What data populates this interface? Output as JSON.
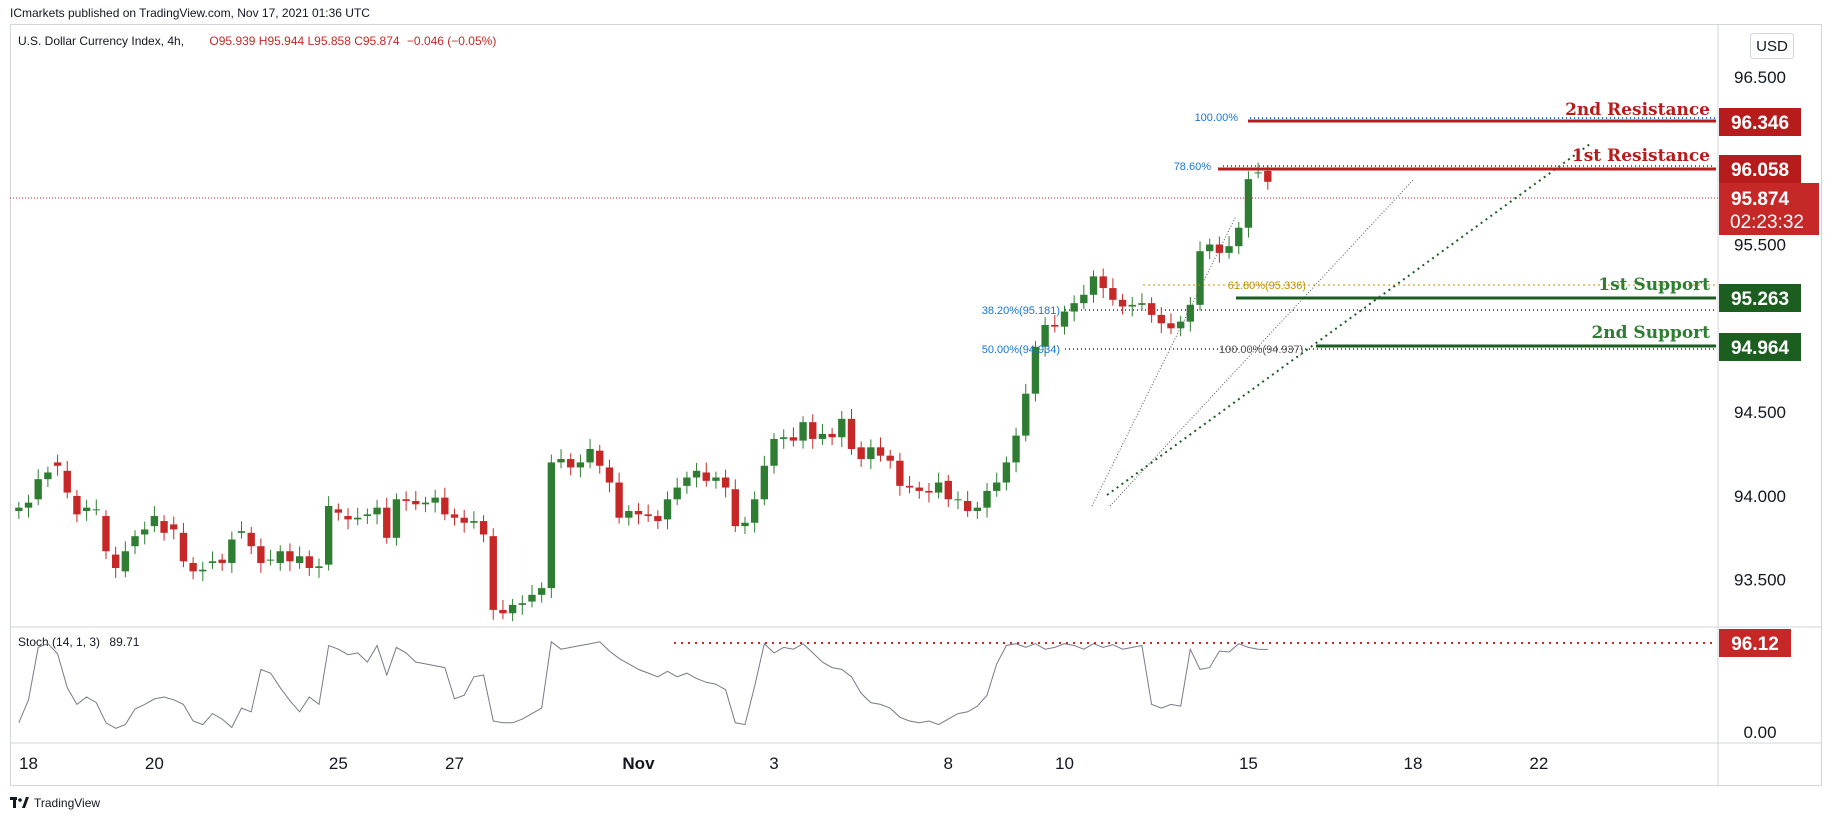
{
  "header": {
    "publisher": "ICmarkets published on TradingView.com, Nov 17, 2021 01:36 UTC",
    "symbol": "U.S. Dollar Currency Index, 4h,",
    "ohlc": "O95.939 H95.944 L95.858 C95.874",
    "change": "−0.046 (−0.05%)",
    "currency": "USD"
  },
  "stoch_legend": {
    "name": "Stoch (14, 1, 3)",
    "value": "89.71"
  },
  "footer": {
    "logo_text": "TradingView"
  },
  "colors": {
    "bull": "#2e7d32",
    "bear": "#c62828",
    "resistance": "#b71c1c",
    "support": "#1b5e20",
    "fib_blue": "#1976d2",
    "fib_gold": "#c49000",
    "current_price": "#c62828",
    "stoch_line": "#787b86"
  },
  "chart_data": [
    {
      "type": "candlestick",
      "title": "U.S. Dollar Currency Index, 4h",
      "ylim": [
        93.23,
        96.72
      ],
      "y_ticks": [
        "96.500",
        "95.500",
        "94.500",
        "94.000",
        "93.500"
      ],
      "x_ticks": [
        {
          "label": "18",
          "bar": 1
        },
        {
          "label": "20",
          "bar": 14
        },
        {
          "label": "25",
          "bar": 33
        },
        {
          "label": "27",
          "bar": 45
        },
        {
          "label": "Nov",
          "bar": 64
        },
        {
          "label": "3",
          "bar": 78
        },
        {
          "label": "8",
          "bar": 96
        },
        {
          "label": "10",
          "bar": 108
        },
        {
          "label": "15",
          "bar": 127
        },
        {
          "label": "18",
          "bar": 144
        },
        {
          "label": "22",
          "bar": 157
        }
      ],
      "total_bars": 176,
      "closes": [
        93.93,
        93.96,
        94.1,
        94.14,
        94.18,
        94.02,
        93.89,
        93.93,
        93.92,
        93.67,
        93.57,
        93.67,
        93.76,
        93.8,
        93.88,
        93.78,
        93.8,
        93.61,
        93.55,
        93.56,
        93.61,
        93.6,
        93.74,
        93.79,
        93.7,
        93.6,
        93.62,
        93.67,
        93.61,
        93.64,
        93.57,
        93.58,
        93.94,
        93.9,
        93.86,
        93.87,
        93.89,
        93.93,
        93.75,
        93.98,
        93.97,
        93.95,
        93.96,
        93.99,
        93.89,
        93.87,
        93.84,
        93.85,
        93.77,
        93.32,
        93.3,
        93.35,
        93.36,
        93.41,
        93.45,
        94.2,
        94.22,
        94.17,
        94.2,
        94.28,
        94.18,
        94.08,
        93.87,
        93.91,
        93.89,
        93.88,
        93.85,
        93.98,
        94.05,
        94.11,
        94.15,
        94.09,
        94.11,
        94.05,
        93.82,
        93.84,
        93.98,
        94.18,
        94.34,
        94.35,
        94.33,
        94.44,
        94.34,
        94.37,
        94.35,
        94.46,
        94.28,
        94.22,
        94.29,
        94.24,
        94.21,
        94.06,
        94.05,
        94.03,
        94.02,
        94.08,
        93.98,
        93.98,
        93.91,
        93.93,
        94.03,
        94.08,
        94.2,
        94.36,
        94.61,
        94.89,
        95.02,
        95.01,
        95.1,
        95.15,
        95.2,
        95.31,
        95.24,
        95.17,
        95.13,
        95.14,
        95.15,
        95.08,
        95.03,
        95.0,
        95.04,
        95.14,
        95.46,
        95.5,
        95.45,
        95.49,
        95.6,
        95.89,
        95.93,
        95.874
      ],
      "opens": [
        93.91,
        93.93,
        93.98,
        94.1,
        94.2,
        94.15,
        94.0,
        93.91,
        93.92,
        93.88,
        93.65,
        93.55,
        93.7,
        93.77,
        93.82,
        93.85,
        93.83,
        93.78,
        93.6,
        93.55,
        93.6,
        93.62,
        93.6,
        93.78,
        93.78,
        93.7,
        93.62,
        93.6,
        93.67,
        93.6,
        93.64,
        93.57,
        93.59,
        93.92,
        93.88,
        93.86,
        93.88,
        93.89,
        93.93,
        93.75,
        93.98,
        93.97,
        93.95,
        93.96,
        93.99,
        93.89,
        93.87,
        93.84,
        93.85,
        93.76,
        93.32,
        93.3,
        93.35,
        93.37,
        93.41,
        93.45,
        94.2,
        94.22,
        94.17,
        94.2,
        94.27,
        94.17,
        94.08,
        93.87,
        93.91,
        93.89,
        93.88,
        93.86,
        93.98,
        94.06,
        94.11,
        94.14,
        94.09,
        94.11,
        94.04,
        93.82,
        93.84,
        93.98,
        94.18,
        94.34,
        94.35,
        94.33,
        94.44,
        94.34,
        94.37,
        94.35,
        94.46,
        94.29,
        94.22,
        94.29,
        94.24,
        94.21,
        94.06,
        94.05,
        94.03,
        94.02,
        94.09,
        93.98,
        93.97,
        93.91,
        93.93,
        94.03,
        94.08,
        94.2,
        94.36,
        94.61,
        94.89,
        95.02,
        95.01,
        95.1,
        95.15,
        95.2,
        95.31,
        95.24,
        95.17,
        95.13,
        95.14,
        95.15,
        95.08,
        95.03,
        95.0,
        95.04,
        95.14,
        95.46,
        95.5,
        95.45,
        95.49,
        95.6,
        95.93,
        95.939
      ]
    },
    {
      "type": "line",
      "title": "Stoch (14, 1, 3)",
      "ylim": [
        0,
        100
      ],
      "y_ticks": [
        "0.00"
      ],
      "values": [
        10,
        35,
        92,
        96,
        85,
        48,
        30,
        38,
        32,
        10,
        4,
        8,
        25,
        30,
        36,
        38,
        35,
        30,
        12,
        8,
        20,
        14,
        5,
        26,
        22,
        68,
        64,
        48,
        34,
        22,
        38,
        30,
        94,
        90,
        84,
        86,
        76,
        94,
        62,
        92,
        86,
        76,
        74,
        72,
        70,
        36,
        40,
        60,
        62,
        12,
        10,
        10,
        14,
        20,
        26,
        98,
        90,
        92,
        94,
        96,
        98,
        88,
        80,
        74,
        68,
        64,
        60,
        66,
        60,
        64,
        58,
        54,
        52,
        46,
        10,
        8,
        50,
        96,
        86,
        92,
        90,
        96,
        86,
        76,
        70,
        68,
        60,
        42,
        32,
        30,
        26,
        16,
        12,
        10,
        12,
        8,
        14,
        20,
        22,
        28,
        40,
        74,
        94,
        96,
        92,
        96,
        90,
        92,
        96,
        94,
        90,
        96,
        92,
        95,
        90,
        92,
        94,
        30,
        26,
        30,
        28,
        90,
        68,
        70,
        88,
        87,
        96,
        92,
        90,
        89.71
      ]
    }
  ],
  "levels": {
    "second_resistance": {
      "label": "2nd Resistance",
      "price": "96.346"
    },
    "first_resistance": {
      "label": "1st Resistance",
      "price": "96.058"
    },
    "current_price": {
      "price": "95.874",
      "countdown": "02:23:32"
    },
    "first_support": {
      "label": "1st Support",
      "price": "95.263"
    },
    "second_support": {
      "label": "2nd Support",
      "price": "94.964"
    },
    "stoch_level": {
      "value": "96.12"
    }
  },
  "fib_labels": {
    "f100": "100.00%",
    "f786": "78.60%",
    "f618": "61.80%(95.336)",
    "f382": "38.20%(95.181)",
    "f50": "50.00%(94.934)",
    "f100b": "100.00%(94.937)"
  }
}
